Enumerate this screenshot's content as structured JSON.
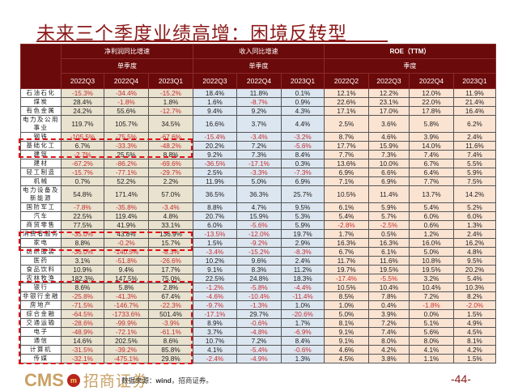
{
  "title": "未来三个季度业绩高增：困境反转型",
  "table": {
    "group_headers": [
      "净利润同比增速",
      "收入同比增速",
      "ROE（TTM）"
    ],
    "sub_headers": [
      "单季度",
      "单季度",
      "季度"
    ],
    "columns": [
      "2022Q3",
      "2022Q4",
      "2023Q1",
      "2022Q3",
      "2022Q4",
      "2023Q1",
      "2022Q2",
      "2022Q3",
      "2022Q4",
      "2023Q1"
    ],
    "rows": [
      {
        "industry": "石油石化",
        "net_profit": [
          "-15.3%",
          "-34.4%",
          "-15.2%"
        ],
        "revenue": [
          "18.4%",
          "11.8%",
          "0.1%"
        ],
        "roe": [
          "12.1%",
          "12.2%",
          "12.0%",
          "11.9%"
        ]
      },
      {
        "industry": "煤炭",
        "net_profit": [
          "28.4%",
          "-1.8%",
          "1.8%"
        ],
        "revenue": [
          "1.6%",
          "-8.7%",
          "0.9%"
        ],
        "roe": [
          "22.6%",
          "23.1%",
          "22.0%",
          "21.4%"
        ]
      },
      {
        "industry": "有色金属",
        "net_profit": [
          "24.2%",
          "55.6%",
          "-12.7%"
        ],
        "revenue": [
          "9.4%",
          "9.2%",
          "4.3%"
        ],
        "roe": [
          "17.1%",
          "17.0%",
          "17.8%",
          "16.4%"
        ]
      },
      {
        "industry": "电力及公用事业",
        "net_profit": [
          "119.7%",
          "105.7%",
          "34.5%"
        ],
        "revenue": [
          "16.6%",
          "3.7%",
          "4.4%"
        ],
        "roe": [
          "2.5%",
          "3.6%",
          "5.8%",
          "6.2%"
        ],
        "double": true
      },
      {
        "industry": "钢铁",
        "net_profit": [
          "-105.5%",
          "-75.5%",
          "-67.6%"
        ],
        "revenue": [
          "-15.4%",
          "-3.4%",
          "-3.2%"
        ],
        "roe": [
          "8.7%",
          "4.6%",
          "3.9%",
          "2.4%"
        ]
      },
      {
        "industry": "基础化工",
        "net_profit": [
          "6.7%",
          "-33.3%",
          "-48.2%"
        ],
        "revenue": [
          "20.2%",
          "7.2%",
          "-5.6%"
        ],
        "roe": [
          "17.7%",
          "15.9%",
          "14.0%",
          "11.6%"
        ]
      },
      {
        "industry": "建筑",
        "net_profit": [
          "-2.7%",
          "25.5%",
          "8.8%"
        ],
        "revenue": [
          "9.2%",
          "7.3%",
          "8.4%"
        ],
        "roe": [
          "7.7%",
          "7.3%",
          "7.4%",
          "7.4%"
        ]
      },
      {
        "industry": "建材",
        "net_profit": [
          "-67.2%",
          "-86.2%",
          "-69.6%"
        ],
        "revenue": [
          "-36.5%",
          "-17.1%",
          "0.3%"
        ],
        "roe": [
          "13.6%",
          "10.0%",
          "6.7%",
          "5.5%"
        ]
      },
      {
        "industry": "轻工制造",
        "net_profit": [
          "-15.7%",
          "-77.1%",
          "-29.7%"
        ],
        "revenue": [
          "2.5%",
          "-3.3%",
          "-7.3%"
        ],
        "roe": [
          "6.9%",
          "6.6%",
          "6.4%",
          "5.9%"
        ]
      },
      {
        "industry": "机械",
        "net_profit": [
          "0.7%",
          "52.2%",
          "2.2%"
        ],
        "revenue": [
          "11.9%",
          "5.0%",
          "6.9%"
        ],
        "roe": [
          "7.1%",
          "6.9%",
          "7.7%",
          "7.5%"
        ]
      },
      {
        "industry": "电力设备及新能源",
        "net_profit": [
          "54.8%",
          "171.4%",
          "57.0%"
        ],
        "revenue": [
          "36.5%",
          "36.3%",
          "25.7%"
        ],
        "roe": [
          "10.5%",
          "11.4%",
          "13.7%",
          "14.2%"
        ],
        "double": true
      },
      {
        "industry": "国防军工",
        "net_profit": [
          "-7.8%",
          "-35.8%",
          "-3.4%"
        ],
        "revenue": [
          "8.8%",
          "4.7%",
          "9.5%"
        ],
        "roe": [
          "6.1%",
          "5.9%",
          "5.4%",
          "5.2%"
        ]
      },
      {
        "industry": "汽车",
        "net_profit": [
          "22.5%",
          "119.4%",
          "4.8%"
        ],
        "revenue": [
          "20.7%",
          "15.9%",
          "5.3%"
        ],
        "roe": [
          "5.4%",
          "5.7%",
          "6.0%",
          "6.0%"
        ]
      },
      {
        "industry": "商贸零售",
        "net_profit": [
          "77.5%",
          "41.9%",
          "33.1%"
        ],
        "revenue": [
          "6.0%",
          "-5.6%",
          "5.9%"
        ],
        "roe": [
          "-2.8%",
          "-2.5%",
          "0.6%",
          "1.3%"
        ]
      },
      {
        "industry": "消费者服务",
        "net_profit": [
          "-35.0%",
          "43.8%",
          "136.9%"
        ],
        "revenue": [
          "-13.5%",
          "-12.0%",
          "19.7%"
        ],
        "roe": [
          "1.7%",
          "0.5%",
          "1.2%",
          "2.4%"
        ]
      },
      {
        "industry": "家电",
        "net_profit": [
          "8.8%",
          "-0.2%",
          "15.7%"
        ],
        "revenue": [
          "1.5%",
          "-9.2%",
          "2.9%"
        ],
        "roe": [
          "16.3%",
          "16.3%",
          "16.0%",
          "16.2%"
        ]
      },
      {
        "industry": "纺织服装",
        "net_profit": [
          "-36.0%",
          "-140.5%",
          "-8.3%"
        ],
        "revenue": [
          "-3.4%",
          "-15.2%",
          "-8.3%"
        ],
        "roe": [
          "6.7%",
          "6.1%",
          "5.0%",
          "4.8%"
        ]
      },
      {
        "industry": "医药",
        "net_profit": [
          "3.1%",
          "-51.8%",
          "-26.6%"
        ],
        "revenue": [
          "10.2%",
          "9.6%",
          "2.4%"
        ],
        "roe": [
          "11.7%",
          "11.6%",
          "10.8%",
          "9.5%"
        ]
      },
      {
        "industry": "食品饮料",
        "net_profit": [
          "10.9%",
          "9.4%",
          "17.7%"
        ],
        "revenue": [
          "9.1%",
          "8.3%",
          "11.2%"
        ],
        "roe": [
          "19.7%",
          "19.5%",
          "19.5%",
          "20.2%"
        ]
      },
      {
        "industry": "农林牧渔",
        "net_profit": [
          "182.3%",
          "147.5%",
          "75.0%"
        ],
        "revenue": [
          "22.5%",
          "24.8%",
          "18.3%"
        ],
        "roe": [
          "-17.4%",
          "-5.5%",
          "3.2%",
          "5.4%"
        ]
      },
      {
        "industry": "银行",
        "net_profit": [
          "8.6%",
          "5.8%",
          "2.8%"
        ],
        "revenue": [
          "-1.2%",
          "-5.8%",
          "-4.4%"
        ],
        "roe": [
          "10.5%",
          "10.4%",
          "10.4%",
          "10.3%"
        ]
      },
      {
        "industry": "非银行金融",
        "net_profit": [
          "-25.8%",
          "-41.3%",
          "67.4%"
        ],
        "revenue": [
          "-4.6%",
          "-10.4%",
          "-11.4%"
        ],
        "roe": [
          "8.5%",
          "7.8%",
          "7.2%",
          "8.2%"
        ]
      },
      {
        "industry": "房地产",
        "net_profit": [
          "-71.5%",
          "-146.7%",
          "-22.3%"
        ],
        "revenue": [
          "-9.7%",
          "-1.3%",
          "1.0%"
        ],
        "roe": [
          "1.0%",
          "0.4%",
          "-1.8%",
          "-2.0%"
        ]
      },
      {
        "industry": "综合金融",
        "net_profit": [
          "-64.5%",
          "-1733.6%",
          "501.4%"
        ],
        "revenue": [
          "-17.1%",
          "29.7%",
          "-20.6%"
        ],
        "roe": [
          "5.0%",
          "3.9%",
          "0.0%",
          "1.5%"
        ]
      },
      {
        "industry": "交通运输",
        "net_profit": [
          "-28.6%",
          "-99.9%",
          "-3.9%"
        ],
        "revenue": [
          "8.9%",
          "-0.6%",
          "1.7%"
        ],
        "roe": [
          "8.1%",
          "7.2%",
          "5.1%",
          "4.9%"
        ]
      },
      {
        "industry": "电子",
        "net_profit": [
          "-48.9%",
          "-72.1%",
          "-61.1%"
        ],
        "revenue": [
          "3.7%",
          "-4.8%",
          "-6.9%"
        ],
        "roe": [
          "9.1%",
          "7.4%",
          "5.6%",
          "4.5%"
        ]
      },
      {
        "industry": "通信",
        "net_profit": [
          "14.6%",
          "202.5%",
          "8.6%"
        ],
        "revenue": [
          "10.7%",
          "7.2%",
          "8.4%"
        ],
        "roe": [
          "9.1%",
          "8.0%",
          "8.0%",
          "8.1%"
        ]
      },
      {
        "industry": "计算机",
        "net_profit": [
          "-31.5%",
          "-39.2%",
          "85.8%"
        ],
        "revenue": [
          "4.1%",
          "-5.4%",
          "-0.6%"
        ],
        "roe": [
          "4.6%",
          "4.2%",
          "4.1%",
          "4.2%"
        ]
      },
      {
        "industry": "传媒",
        "net_profit": [
          "-32.1%",
          "-475.1%",
          "29.8%"
        ],
        "revenue": [
          "-2.4%",
          "-4.9%",
          "1.3%"
        ],
        "roe": [
          "4.5%",
          "3.8%",
          "1.1%",
          "1.5%"
        ]
      }
    ]
  },
  "highlight_groups": [
    {
      "label": "建材 / 轻工制造",
      "rows": [
        "建材",
        "轻工制造"
      ]
    },
    {
      "label": "家电 / 纺织服装",
      "rows": [
        "家电",
        "纺织服装"
      ]
    },
    {
      "label": "银行 至 传媒",
      "rows": [
        "银行",
        "非银行金融",
        "房地产",
        "综合金融",
        "交通运输",
        "电子",
        "通信",
        "计算机",
        "传媒"
      ]
    }
  ],
  "colors": {
    "brand_red": "#8b1a1a",
    "header_bg": "#6b0a0a",
    "net_profit_bg": "#e9e2cf",
    "revenue_bg": "#dce6f0",
    "roe_bg": "#fbe3d2",
    "negative_text": "#c43030",
    "highlight_dash": "#e0101a",
    "logo_gold": "#c9a064"
  },
  "footer": {
    "logo_latin": "CMS",
    "logo_mark": "m",
    "logo_chinese": "招商证券",
    "source_label": "数据来源：",
    "source_value": "wind",
    "source_tail": "，招商证券。",
    "page_number": "-44-"
  }
}
